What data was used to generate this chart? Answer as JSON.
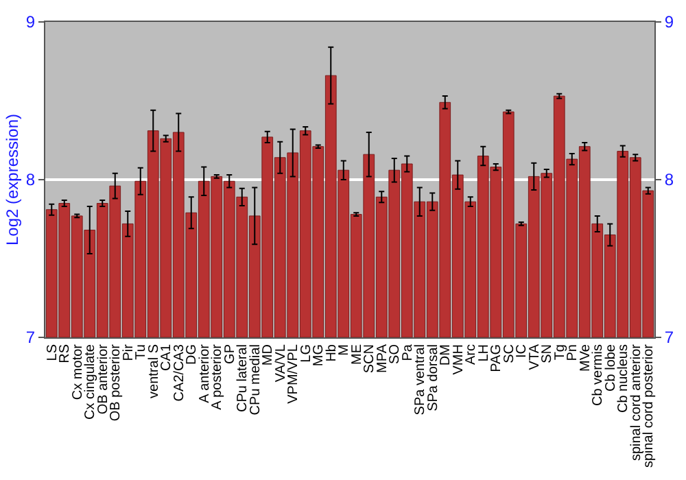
{
  "chart_data": {
    "type": "bar",
    "ylabel": "Log2 (expression)",
    "categories": [
      "LS",
      "RS",
      "Cx motor",
      "Cx cingulate",
      "OB anterior",
      "OB posterior",
      "Pir",
      "Tu",
      "ventral S",
      "CA1",
      "CA2/CA3",
      "DG",
      "A anterior",
      "A posterior",
      "GP",
      "CPu lateral",
      "CPu medial",
      "MD",
      "VA/VL",
      "VPM/VPL",
      "LG",
      "MG",
      "Hb",
      "M",
      "ME",
      "SCN",
      "MPA",
      "SO",
      "Pa",
      "SPa ventral",
      "SPa dorsal",
      "DM",
      "VMH",
      "Arc",
      "LH",
      "PAG",
      "SC",
      "IC",
      "VTA",
      "SN",
      "Tg",
      "Pn",
      "MVe",
      "Cb vermis",
      "Cb lobe",
      "Cb nucleus",
      "spinal cord anterior",
      "spinal cord posterior"
    ],
    "values": [
      7.81,
      7.85,
      7.77,
      7.68,
      7.85,
      7.96,
      7.72,
      7.99,
      8.31,
      8.26,
      8.3,
      7.79,
      7.99,
      8.02,
      7.99,
      7.89,
      7.77,
      8.27,
      8.14,
      8.17,
      8.31,
      8.21,
      8.66,
      8.06,
      7.78,
      8.16,
      7.89,
      8.06,
      8.1,
      7.86,
      7.86,
      8.49,
      8.03,
      7.86,
      8.15,
      8.08,
      8.43,
      7.72,
      8.02,
      8.04,
      8.53,
      8.13,
      8.21,
      7.72,
      7.65,
      8.18,
      8.14,
      7.93
    ],
    "errors": [
      0.035,
      0.02,
      0.01,
      0.15,
      0.02,
      0.08,
      0.08,
      0.085,
      0.13,
      0.02,
      0.12,
      0.1,
      0.09,
      0.01,
      0.04,
      0.055,
      0.18,
      0.035,
      0.1,
      0.15,
      0.025,
      0.01,
      0.18,
      0.06,
      0.01,
      0.14,
      0.035,
      0.075,
      0.05,
      0.09,
      0.055,
      0.04,
      0.09,
      0.03,
      0.06,
      0.02,
      0.01,
      0.01,
      0.085,
      0.025,
      0.015,
      0.035,
      0.025,
      0.05,
      0.07,
      0.035,
      0.02,
      0.02
    ],
    "color": "#b83232",
    "ylim": [
      7,
      9
    ],
    "yticks": [
      7,
      8,
      9
    ],
    "y2lim": [
      7,
      9
    ],
    "y2ticks": [
      7,
      8,
      9
    ],
    "grid": "y",
    "legend": false
  }
}
